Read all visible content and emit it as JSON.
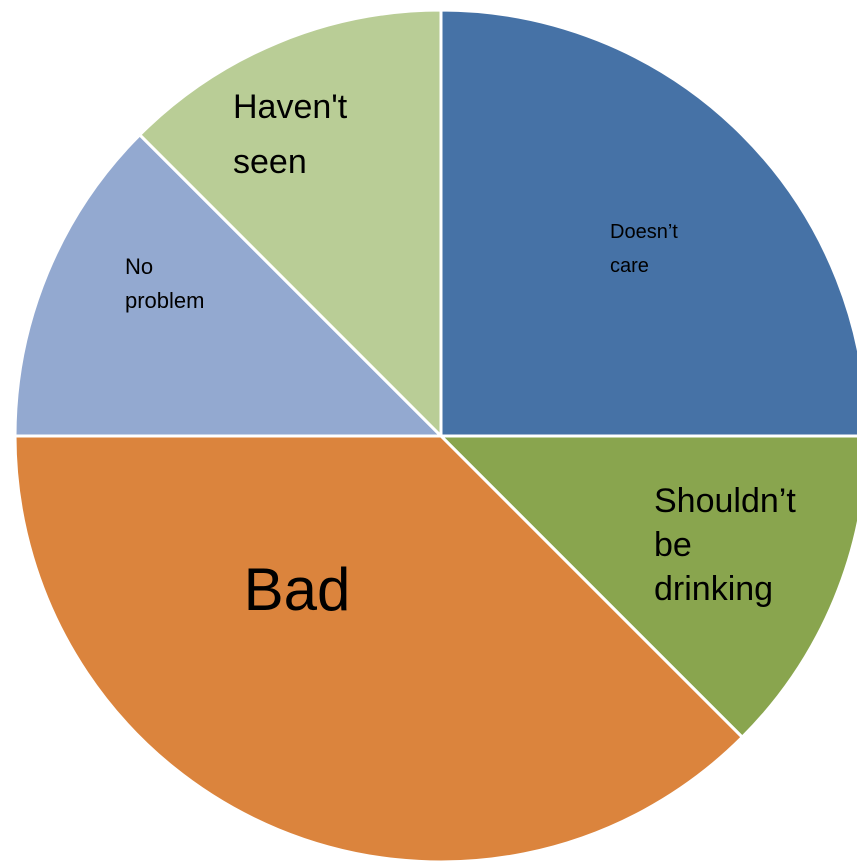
{
  "chart_data": {
    "type": "pie",
    "title": "",
    "start_angle_deg": 0,
    "direction": "clockwise",
    "slices": [
      {
        "label_lines": [
          "Doesn’t",
          "care"
        ],
        "value": 25,
        "color": "#4672A6"
      },
      {
        "label_lines": [
          "Shouldn’t",
          "be",
          "drinking"
        ],
        "value": 12.5,
        "color": "#89A54E"
      },
      {
        "label_lines": [
          "Bad"
        ],
        "value": 37.5,
        "color": "#DB843D"
      },
      {
        "label_lines": [
          "No",
          "problem"
        ],
        "value": 12.5,
        "color": "#93A9D0"
      },
      {
        "label_lines": [
          "Haven't",
          "seen"
        ],
        "value": 12.5,
        "color": "#B9CD96"
      }
    ]
  }
}
